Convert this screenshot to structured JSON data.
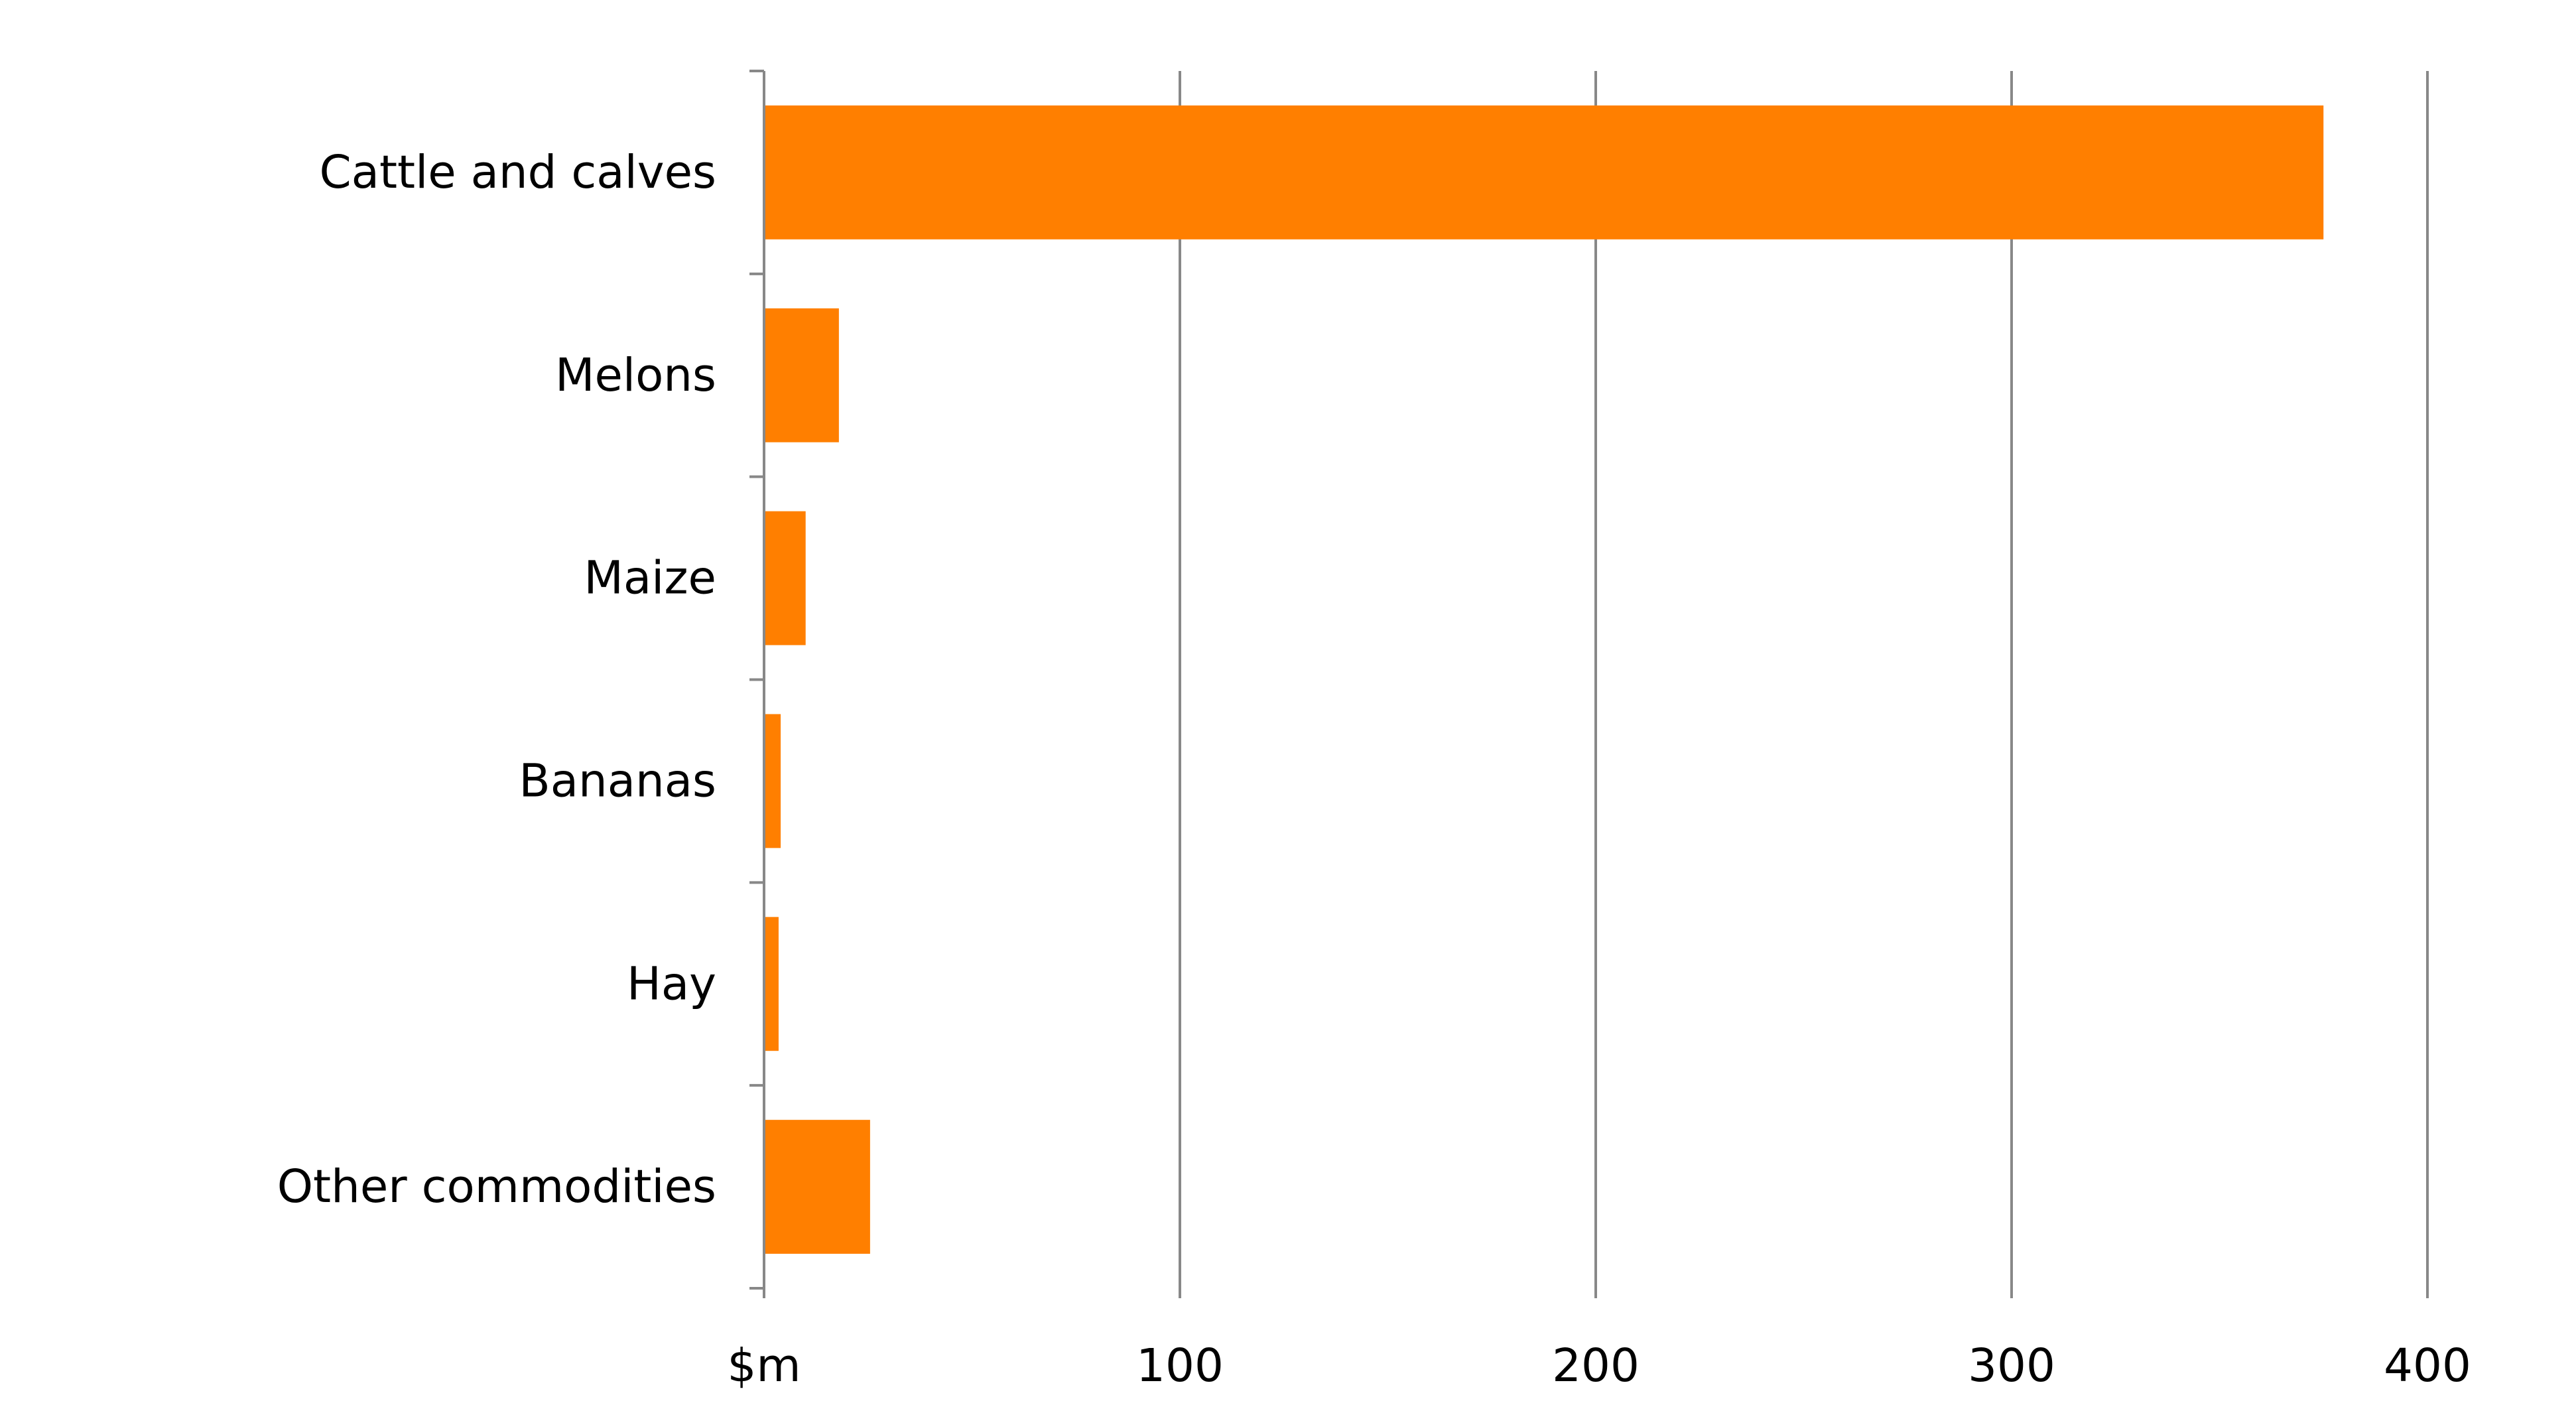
{
  "chart_data": {
    "type": "bar",
    "orientation": "horizontal",
    "categories": [
      "Cattle and calves",
      "Melons",
      "Maize",
      "Bananas",
      "Hay",
      "Other commodities"
    ],
    "values": [
      375,
      18,
      10,
      4,
      3.5,
      25.5
    ],
    "xlim": [
      0,
      400
    ],
    "x_ticks": [
      0,
      100,
      200,
      300,
      400
    ],
    "x_tick_labels": [
      "$m",
      "100",
      "200",
      "300",
      "400"
    ],
    "grid": "vertical",
    "legend": "none",
    "title": "",
    "xlabel": "",
    "ylabel": "",
    "bar_color": "#FF7F00",
    "grid_color": "#888888",
    "axis_color": "#888888"
  }
}
